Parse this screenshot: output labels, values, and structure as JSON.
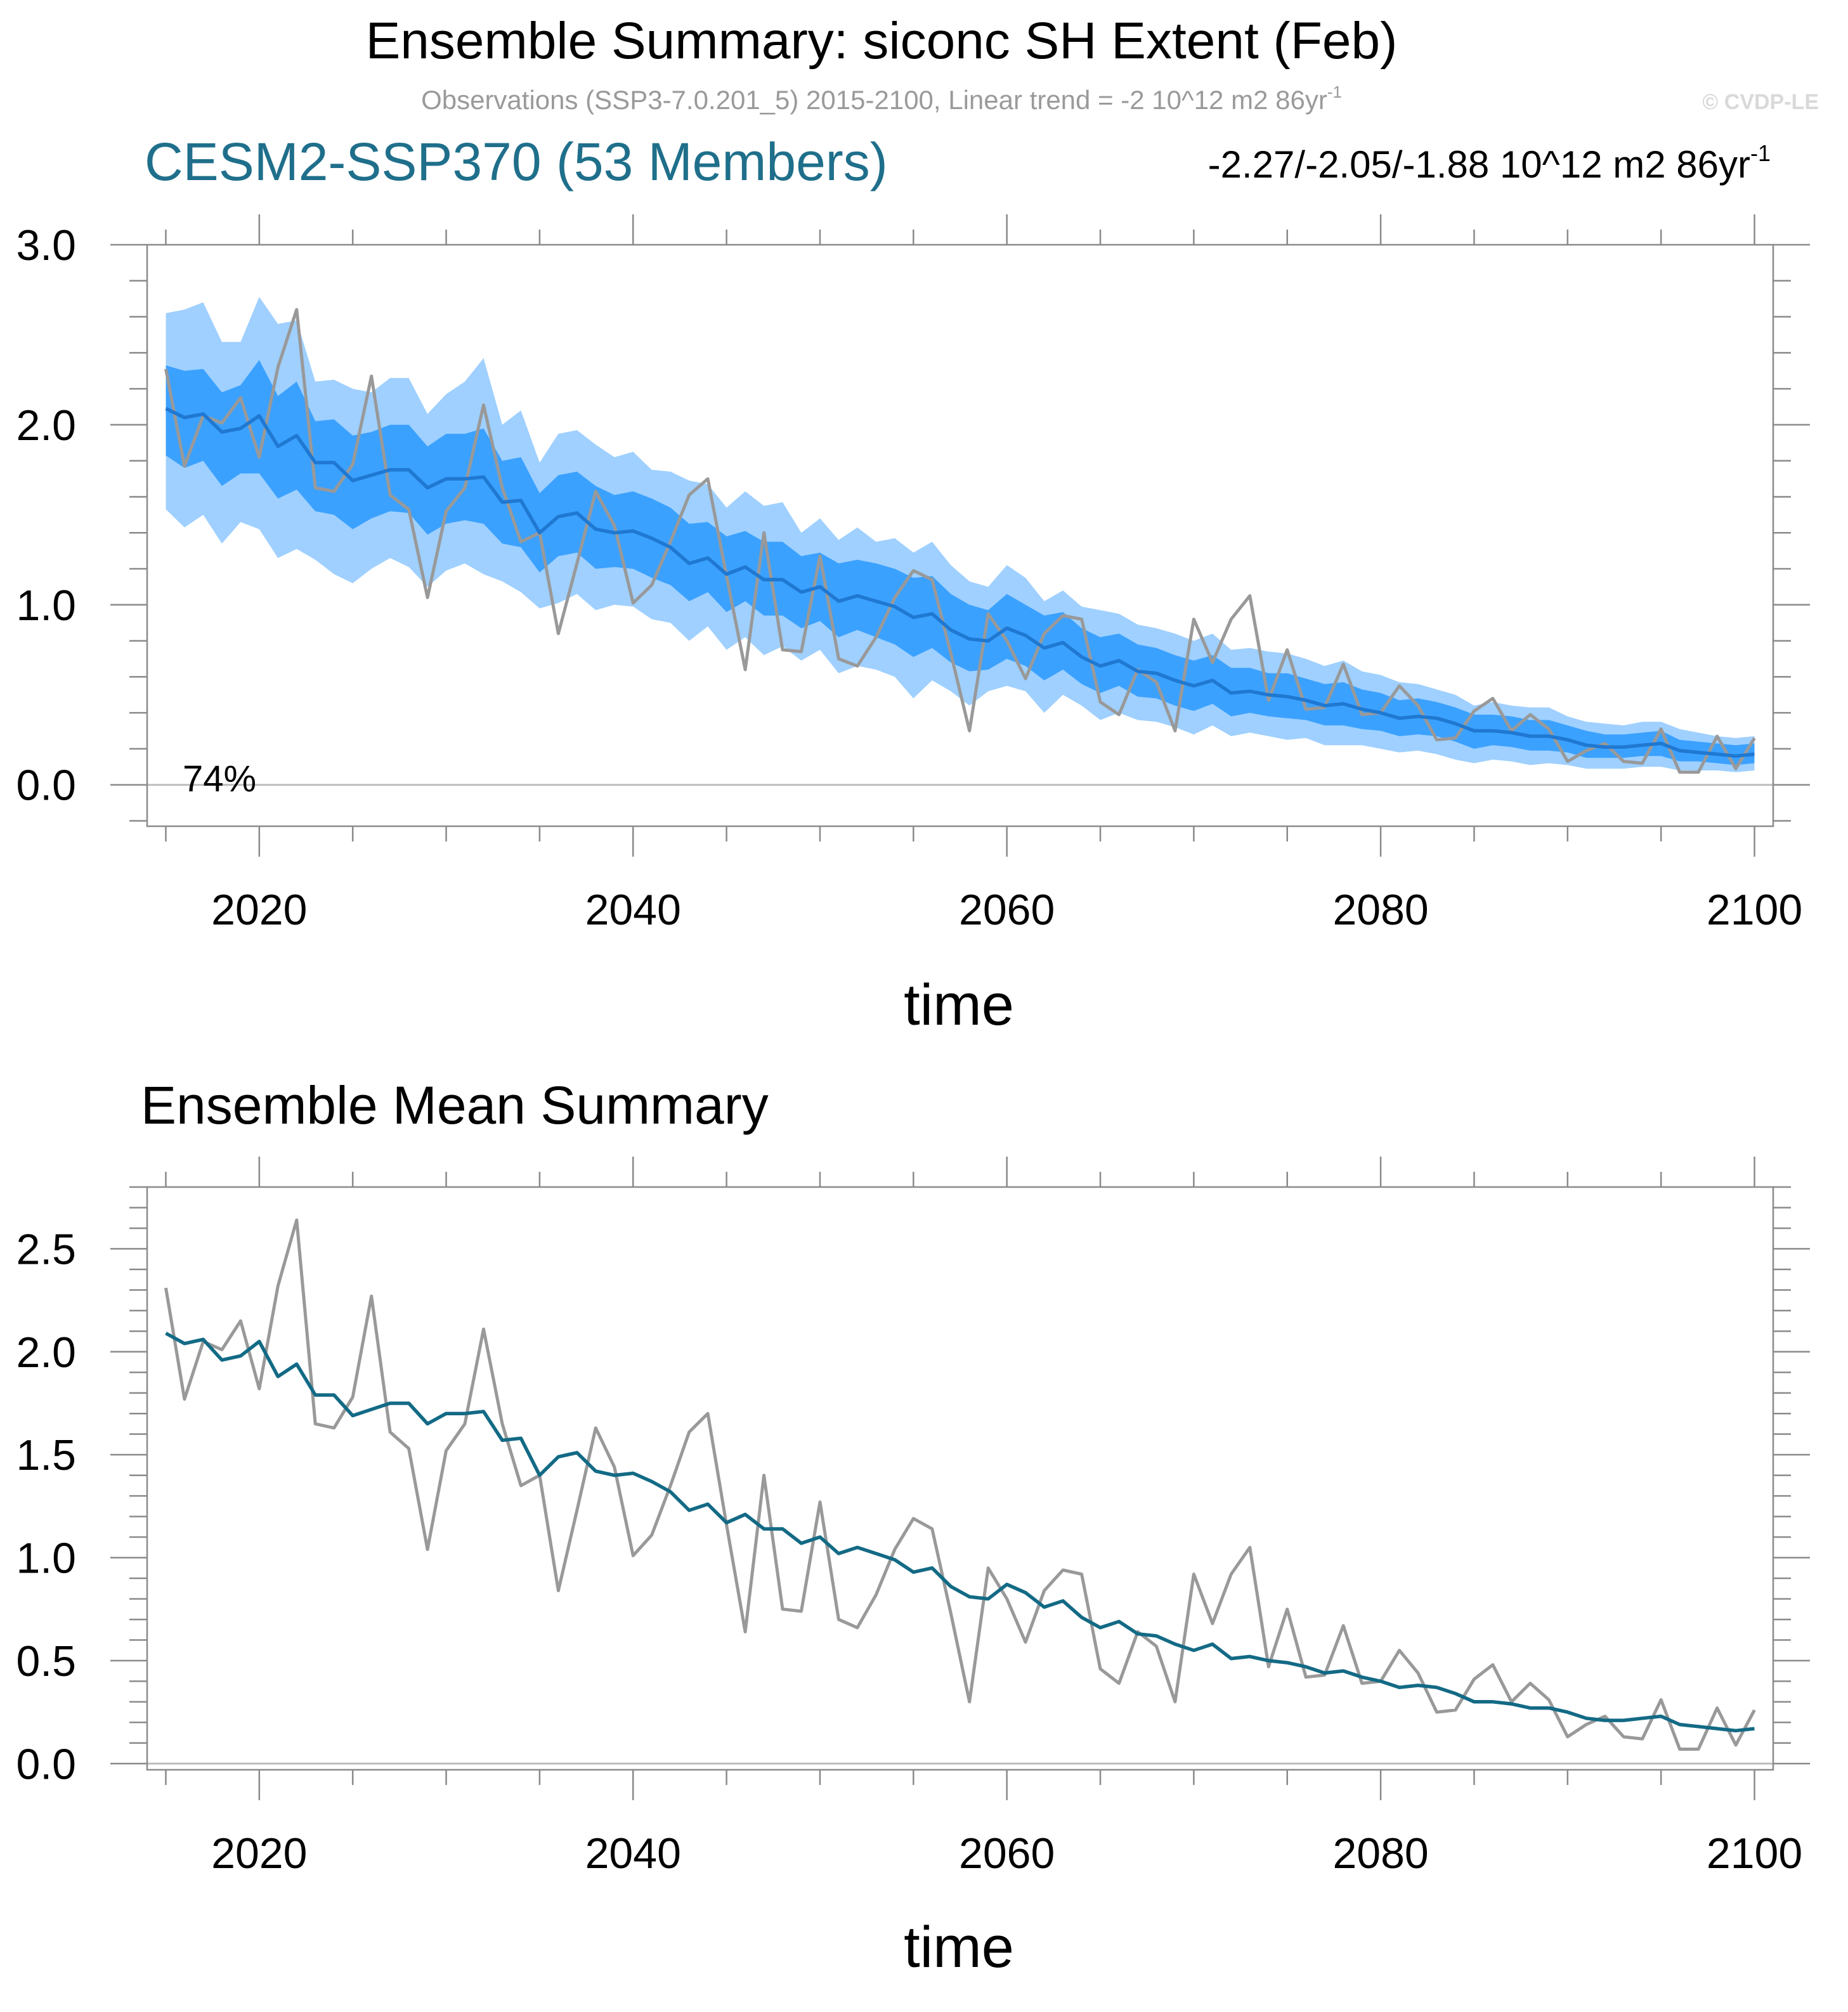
{
  "figure": {
    "title": "Ensemble Summary: siconc SH Extent (Feb)",
    "subtitle": "Observations (SSP3-7.0.201_5) 2015-2100, Linear trend = -2 10^12 m2 86yr",
    "subtitle_sup": "-1",
    "watermark": "© CVDP-LE"
  },
  "colors": {
    "ensemble_label": "#1f6f8b",
    "band_outer": "#9fd0ff",
    "band_inner": "#3ba1ff",
    "ens_mean_top": "#1f78d1",
    "ens_mean_bottom": "#136a85",
    "obs": "#999999",
    "axis": "#8a8a8a",
    "zero_line": "#bdbdbd",
    "text": "#000000",
    "subtitle": "#9a9a9a",
    "watermark": "#d9d9d9"
  },
  "chart_data": [
    {
      "type": "area",
      "panel": "top",
      "left_label": "CESM2-SSP370 (53 Members)",
      "right_label": "-2.27/-2.05/-1.88 10^12 m2 86yr",
      "right_label_sup": "-1",
      "annotation": "74%",
      "xlabel": "time",
      "ylabel": "",
      "xlim": [
        2014,
        2101
      ],
      "ylim": [
        -0.23,
        3.0
      ],
      "x_ticks": [
        2020,
        2040,
        2060,
        2080,
        2100
      ],
      "x_tick_labels": [
        "2020",
        "2040",
        "2060",
        "2080",
        "2100"
      ],
      "y_ticks": [
        0,
        1,
        2,
        3
      ],
      "y_tick_labels": [
        "0.0",
        "1.0",
        "2.0",
        "3.0"
      ],
      "x": [
        2015,
        2016,
        2017,
        2018,
        2019,
        2020,
        2021,
        2022,
        2023,
        2024,
        2025,
        2026,
        2027,
        2028,
        2029,
        2030,
        2031,
        2032,
        2033,
        2034,
        2035,
        2036,
        2037,
        2038,
        2039,
        2040,
        2041,
        2042,
        2043,
        2044,
        2045,
        2046,
        2047,
        2048,
        2049,
        2050,
        2051,
        2052,
        2053,
        2054,
        2055,
        2056,
        2057,
        2058,
        2059,
        2060,
        2061,
        2062,
        2063,
        2064,
        2065,
        2066,
        2067,
        2068,
        2069,
        2070,
        2071,
        2072,
        2073,
        2074,
        2075,
        2076,
        2077,
        2078,
        2079,
        2080,
        2081,
        2082,
        2083,
        2084,
        2085,
        2086,
        2087,
        2088,
        2089,
        2090,
        2091,
        2092,
        2093,
        2094,
        2095,
        2096,
        2097,
        2098,
        2099,
        2100
      ],
      "series": [
        {
          "name": "ensemble mean",
          "values": [
            2.09,
            2.04,
            2.06,
            1.96,
            1.98,
            2.05,
            1.88,
            1.94,
            1.79,
            1.79,
            1.69,
            1.72,
            1.75,
            1.75,
            1.65,
            1.7,
            1.7,
            1.71,
            1.57,
            1.58,
            1.4,
            1.49,
            1.51,
            1.42,
            1.4,
            1.41,
            1.37,
            1.32,
            1.23,
            1.26,
            1.17,
            1.21,
            1.14,
            1.14,
            1.07,
            1.1,
            1.02,
            1.05,
            1.02,
            0.99,
            0.93,
            0.95,
            0.86,
            0.81,
            0.8,
            0.87,
            0.83,
            0.76,
            0.79,
            0.71,
            0.66,
            0.69,
            0.63,
            0.62,
            0.58,
            0.55,
            0.58,
            0.51,
            0.52,
            0.5,
            0.49,
            0.47,
            0.44,
            0.45,
            0.42,
            0.4,
            0.37,
            0.38,
            0.37,
            0.34,
            0.3,
            0.3,
            0.29,
            0.27,
            0.27,
            0.25,
            0.22,
            0.21,
            0.21,
            0.22,
            0.23,
            0.19,
            0.18,
            0.17,
            0.16,
            0.17
          ]
        },
        {
          "name": "observations",
          "values": [
            2.31,
            1.77,
            2.05,
            2.01,
            2.15,
            1.82,
            2.32,
            2.64,
            1.65,
            1.63,
            1.78,
            2.27,
            1.61,
            1.53,
            1.04,
            1.52,
            1.65,
            2.11,
            1.65,
            1.35,
            1.4,
            0.84,
            1.23,
            1.63,
            1.44,
            1.01,
            1.11,
            1.35,
            1.61,
            1.7,
            1.16,
            0.64,
            1.4,
            0.75,
            0.74,
            1.27,
            0.7,
            0.66,
            0.82,
            1.04,
            1.19,
            1.14,
            0.73,
            0.3,
            0.95,
            0.8,
            0.59,
            0.84,
            0.94,
            0.92,
            0.46,
            0.39,
            0.64,
            0.57,
            0.3,
            0.92,
            0.68,
            0.92,
            1.05,
            0.47,
            0.75,
            0.42,
            0.43,
            0.67,
            0.39,
            0.4,
            0.55,
            0.44,
            0.25,
            0.26,
            0.41,
            0.48,
            0.3,
            0.39,
            0.31,
            0.13,
            0.19,
            0.23,
            0.13,
            0.12,
            0.31,
            0.07,
            0.07,
            0.27,
            0.09,
            0.26
          ]
        },
        {
          "name": "ensemble min (outer band lower)",
          "values": [
            1.53,
            1.43,
            1.5,
            1.34,
            1.46,
            1.42,
            1.26,
            1.31,
            1.25,
            1.17,
            1.12,
            1.2,
            1.26,
            1.21,
            1.1,
            1.19,
            1.23,
            1.17,
            1.13,
            1.07,
            0.98,
            1.01,
            1.06,
            0.97,
            1.0,
            0.99,
            0.92,
            0.9,
            0.8,
            0.88,
            0.75,
            0.82,
            0.72,
            0.77,
            0.69,
            0.75,
            0.62,
            0.66,
            0.64,
            0.6,
            0.48,
            0.58,
            0.52,
            0.44,
            0.52,
            0.55,
            0.52,
            0.4,
            0.5,
            0.44,
            0.36,
            0.4,
            0.36,
            0.35,
            0.32,
            0.28,
            0.33,
            0.27,
            0.29,
            0.27,
            0.25,
            0.26,
            0.22,
            0.22,
            0.22,
            0.2,
            0.18,
            0.19,
            0.17,
            0.14,
            0.12,
            0.14,
            0.13,
            0.11,
            0.12,
            0.11,
            0.09,
            0.09,
            0.09,
            0.1,
            0.1,
            0.08,
            0.08,
            0.08,
            0.07,
            0.08
          ]
        },
        {
          "name": "ensemble max (outer band upper)",
          "values": [
            2.62,
            2.64,
            2.68,
            2.46,
            2.46,
            2.71,
            2.56,
            2.58,
            2.24,
            2.25,
            2.2,
            2.18,
            2.26,
            2.26,
            2.06,
            2.17,
            2.24,
            2.37,
            2.0,
            2.08,
            1.79,
            1.95,
            1.97,
            1.89,
            1.82,
            1.85,
            1.75,
            1.74,
            1.69,
            1.67,
            1.54,
            1.63,
            1.55,
            1.57,
            1.4,
            1.48,
            1.36,
            1.43,
            1.35,
            1.37,
            1.29,
            1.35,
            1.22,
            1.13,
            1.1,
            1.22,
            1.15,
            1.02,
            1.08,
            0.99,
            0.97,
            0.95,
            0.89,
            0.87,
            0.84,
            0.8,
            0.84,
            0.75,
            0.76,
            0.74,
            0.73,
            0.7,
            0.66,
            0.69,
            0.63,
            0.61,
            0.57,
            0.56,
            0.53,
            0.5,
            0.44,
            0.46,
            0.44,
            0.43,
            0.43,
            0.38,
            0.35,
            0.34,
            0.33,
            0.35,
            0.35,
            0.31,
            0.29,
            0.27,
            0.26,
            0.27
          ]
        },
        {
          "name": "10th percentile (inner band lower)",
          "values": [
            1.83,
            1.76,
            1.8,
            1.66,
            1.73,
            1.73,
            1.59,
            1.64,
            1.52,
            1.5,
            1.42,
            1.48,
            1.52,
            1.51,
            1.39,
            1.45,
            1.47,
            1.45,
            1.34,
            1.32,
            1.18,
            1.27,
            1.29,
            1.2,
            1.21,
            1.2,
            1.15,
            1.11,
            1.02,
            1.07,
            0.96,
            1.02,
            0.94,
            0.94,
            0.87,
            0.91,
            0.82,
            0.86,
            0.82,
            0.78,
            0.71,
            0.76,
            0.68,
            0.63,
            0.64,
            0.7,
            0.66,
            0.58,
            0.64,
            0.56,
            0.51,
            0.55,
            0.49,
            0.48,
            0.44,
            0.41,
            0.45,
            0.38,
            0.4,
            0.38,
            0.37,
            0.36,
            0.33,
            0.33,
            0.31,
            0.3,
            0.27,
            0.28,
            0.27,
            0.24,
            0.2,
            0.22,
            0.21,
            0.19,
            0.19,
            0.18,
            0.15,
            0.15,
            0.15,
            0.16,
            0.16,
            0.13,
            0.13,
            0.12,
            0.11,
            0.12
          ]
        },
        {
          "name": "90th percentile (inner band upper)",
          "values": [
            2.33,
            2.3,
            2.31,
            2.18,
            2.22,
            2.36,
            2.16,
            2.24,
            2.02,
            2.03,
            1.94,
            1.96,
            2.0,
            2.0,
            1.88,
            1.95,
            1.95,
            1.98,
            1.8,
            1.82,
            1.62,
            1.72,
            1.74,
            1.66,
            1.61,
            1.63,
            1.59,
            1.54,
            1.45,
            1.46,
            1.38,
            1.41,
            1.35,
            1.35,
            1.27,
            1.29,
            1.23,
            1.25,
            1.23,
            1.2,
            1.15,
            1.16,
            1.06,
            1.0,
            0.97,
            1.06,
            1.0,
            0.94,
            0.96,
            0.87,
            0.82,
            0.84,
            0.78,
            0.76,
            0.72,
            0.69,
            0.72,
            0.65,
            0.65,
            0.62,
            0.62,
            0.59,
            0.56,
            0.57,
            0.53,
            0.51,
            0.47,
            0.48,
            0.46,
            0.43,
            0.39,
            0.39,
            0.38,
            0.36,
            0.36,
            0.33,
            0.3,
            0.28,
            0.28,
            0.29,
            0.3,
            0.25,
            0.24,
            0.23,
            0.22,
            0.23
          ]
        }
      ]
    },
    {
      "type": "line",
      "panel": "bottom",
      "title": "Ensemble Mean Summary",
      "xlabel": "time",
      "ylabel": "",
      "xlim": [
        2014,
        2101
      ],
      "ylim": [
        -0.03,
        2.8
      ],
      "x_ticks": [
        2020,
        2040,
        2060,
        2080,
        2100
      ],
      "x_tick_labels": [
        "2020",
        "2040",
        "2060",
        "2080",
        "2100"
      ],
      "y_ticks": [
        0,
        0.5,
        1.0,
        1.5,
        2.0,
        2.5
      ],
      "y_tick_labels": [
        "0.0",
        "0.5",
        "1.0",
        "1.5",
        "2.0",
        "2.5"
      ],
      "x": [
        2015,
        2016,
        2017,
        2018,
        2019,
        2020,
        2021,
        2022,
        2023,
        2024,
        2025,
        2026,
        2027,
        2028,
        2029,
        2030,
        2031,
        2032,
        2033,
        2034,
        2035,
        2036,
        2037,
        2038,
        2039,
        2040,
        2041,
        2042,
        2043,
        2044,
        2045,
        2046,
        2047,
        2048,
        2049,
        2050,
        2051,
        2052,
        2053,
        2054,
        2055,
        2056,
        2057,
        2058,
        2059,
        2060,
        2061,
        2062,
        2063,
        2064,
        2065,
        2066,
        2067,
        2068,
        2069,
        2070,
        2071,
        2072,
        2073,
        2074,
        2075,
        2076,
        2077,
        2078,
        2079,
        2080,
        2081,
        2082,
        2083,
        2084,
        2085,
        2086,
        2087,
        2088,
        2089,
        2090,
        2091,
        2092,
        2093,
        2094,
        2095,
        2096,
        2097,
        2098,
        2099,
        2100
      ],
      "series": [
        {
          "name": "ensemble mean",
          "values": [
            2.09,
            2.04,
            2.06,
            1.96,
            1.98,
            2.05,
            1.88,
            1.94,
            1.79,
            1.79,
            1.69,
            1.72,
            1.75,
            1.75,
            1.65,
            1.7,
            1.7,
            1.71,
            1.57,
            1.58,
            1.4,
            1.49,
            1.51,
            1.42,
            1.4,
            1.41,
            1.37,
            1.32,
            1.23,
            1.26,
            1.17,
            1.21,
            1.14,
            1.14,
            1.07,
            1.1,
            1.02,
            1.05,
            1.02,
            0.99,
            0.93,
            0.95,
            0.86,
            0.81,
            0.8,
            0.87,
            0.83,
            0.76,
            0.79,
            0.71,
            0.66,
            0.69,
            0.63,
            0.62,
            0.58,
            0.55,
            0.58,
            0.51,
            0.52,
            0.5,
            0.49,
            0.47,
            0.44,
            0.45,
            0.42,
            0.4,
            0.37,
            0.38,
            0.37,
            0.34,
            0.3,
            0.3,
            0.29,
            0.27,
            0.27,
            0.25,
            0.22,
            0.21,
            0.21,
            0.22,
            0.23,
            0.19,
            0.18,
            0.17,
            0.16,
            0.17
          ]
        },
        {
          "name": "observations",
          "values": [
            2.31,
            1.77,
            2.05,
            2.01,
            2.15,
            1.82,
            2.32,
            2.64,
            1.65,
            1.63,
            1.78,
            2.27,
            1.61,
            1.53,
            1.04,
            1.52,
            1.65,
            2.11,
            1.65,
            1.35,
            1.4,
            0.84,
            1.23,
            1.63,
            1.44,
            1.01,
            1.11,
            1.35,
            1.61,
            1.7,
            1.16,
            0.64,
            1.4,
            0.75,
            0.74,
            1.27,
            0.7,
            0.66,
            0.82,
            1.04,
            1.19,
            1.14,
            0.73,
            0.3,
            0.95,
            0.8,
            0.59,
            0.84,
            0.94,
            0.92,
            0.46,
            0.39,
            0.64,
            0.57,
            0.3,
            0.92,
            0.68,
            0.92,
            1.05,
            0.47,
            0.75,
            0.42,
            0.43,
            0.67,
            0.39,
            0.4,
            0.55,
            0.44,
            0.25,
            0.26,
            0.41,
            0.48,
            0.3,
            0.39,
            0.31,
            0.13,
            0.19,
            0.23,
            0.13,
            0.12,
            0.31,
            0.07,
            0.07,
            0.27,
            0.09,
            0.26
          ]
        }
      ]
    }
  ]
}
